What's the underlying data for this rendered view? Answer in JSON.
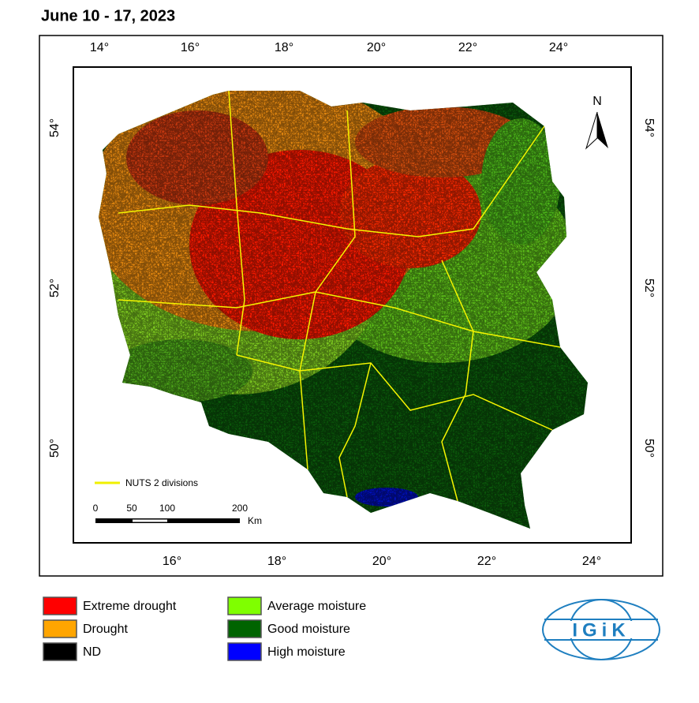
{
  "title": "June 10 - 17, 2023",
  "map": {
    "top_axis": [
      "14°",
      "16°",
      "18°",
      "20°",
      "22°",
      "24°"
    ],
    "bottom_axis": [
      "16°",
      "18°",
      "20°",
      "22°",
      "24°"
    ],
    "left_axis": [
      "54°",
      "52°",
      "50°"
    ],
    "right_axis": [
      "54°",
      "52°",
      "50°"
    ],
    "north": "N",
    "nuts_label": "NUTS 2 divisions",
    "scale": {
      "ticks": [
        "0",
        "50",
        "100",
        "200"
      ],
      "unit": "Km"
    }
  },
  "legend": [
    {
      "label": "Extreme drought",
      "color": "#ff0000"
    },
    {
      "label": "Drought",
      "color": "#ffa500"
    },
    {
      "label": "ND",
      "color": "#000000"
    },
    {
      "label": "Average moisture",
      "color": "#7fff00"
    },
    {
      "label": "Good moisture",
      "color": "#006400"
    },
    {
      "label": "High moisture",
      "color": "#0000ff"
    }
  ],
  "logo": "IGiK"
}
